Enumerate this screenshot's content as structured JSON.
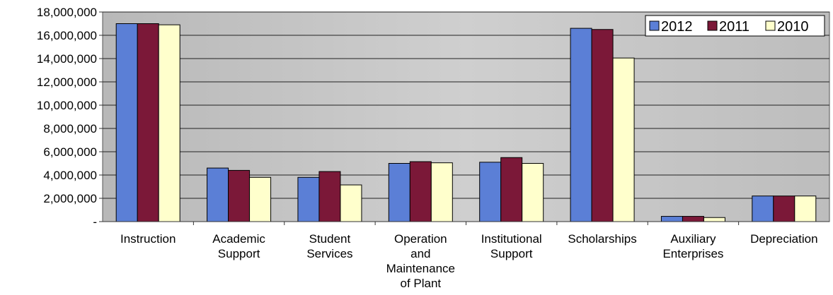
{
  "chart_data": {
    "type": "bar",
    "categories": [
      [
        "Instruction"
      ],
      [
        "Academic",
        "Support"
      ],
      [
        "Student",
        "Services"
      ],
      [
        "Operation",
        "and",
        "Maintenance",
        "of Plant"
      ],
      [
        "Institutional",
        "Support"
      ],
      [
        "Scholarships"
      ],
      [
        "Auxiliary",
        "Enterprises"
      ],
      [
        "Depreciation"
      ]
    ],
    "series": [
      {
        "name": "2012",
        "color": "#5b7fd6",
        "values": [
          17000000,
          4600000,
          3800000,
          5000000,
          5100000,
          16600000,
          450000,
          2200000
        ]
      },
      {
        "name": "2011",
        "color": "#7b1838",
        "values": [
          17000000,
          4400000,
          4300000,
          5150000,
          5500000,
          16500000,
          450000,
          2200000
        ]
      },
      {
        "name": "2010",
        "color": "#ffffcc",
        "values": [
          16900000,
          3800000,
          3150000,
          5050000,
          5000000,
          14050000,
          350000,
          2200000
        ]
      }
    ],
    "ylim": [
      0,
      18000000
    ],
    "yticks": [
      {
        "value": 0,
        "label": "-"
      },
      {
        "value": 2000000,
        "label": "2,000,000"
      },
      {
        "value": 4000000,
        "label": "4,000,000"
      },
      {
        "value": 6000000,
        "label": "6,000,000"
      },
      {
        "value": 8000000,
        "label": "8,000,000"
      },
      {
        "value": 10000000,
        "label": "10,000,000"
      },
      {
        "value": 12000000,
        "label": "12,000,000"
      },
      {
        "value": 14000000,
        "label": "14,000,000"
      },
      {
        "value": 16000000,
        "label": "16,000,000"
      },
      {
        "value": 18000000,
        "label": "18,000,000"
      }
    ],
    "grid": true,
    "legend": "top-right"
  }
}
